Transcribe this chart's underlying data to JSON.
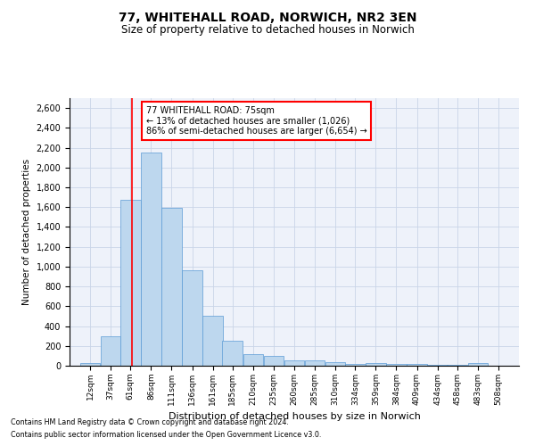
{
  "title1": "77, WHITEHALL ROAD, NORWICH, NR2 3EN",
  "title2": "Size of property relative to detached houses in Norwich",
  "xlabel": "Distribution of detached houses by size in Norwich",
  "ylabel": "Number of detached properties",
  "footer1": "Contains HM Land Registry data © Crown copyright and database right 2024.",
  "footer2": "Contains public sector information licensed under the Open Government Licence v3.0.",
  "annotation_title": "77 WHITEHALL ROAD: 75sqm",
  "annotation_line1": "← 13% of detached houses are smaller (1,026)",
  "annotation_line2": "86% of semi-detached houses are larger (6,654) →",
  "property_size": 75,
  "bar_color": "#BDD7EE",
  "bar_edge_color": "#5B9BD5",
  "grid_color": "#C9D5E8",
  "vline_color": "red",
  "annotation_box_color": "red",
  "background_color": "#EEF2FA",
  "categories": [
    "12sqm",
    "37sqm",
    "61sqm",
    "86sqm",
    "111sqm",
    "136sqm",
    "161sqm",
    "185sqm",
    "210sqm",
    "235sqm",
    "260sqm",
    "285sqm",
    "310sqm",
    "334sqm",
    "359sqm",
    "384sqm",
    "409sqm",
    "434sqm",
    "458sqm",
    "483sqm",
    "508sqm"
  ],
  "bin_starts": [
    12,
    37,
    61,
    86,
    111,
    136,
    161,
    185,
    210,
    235,
    260,
    285,
    310,
    334,
    359,
    384,
    409,
    434,
    458,
    483,
    508
  ],
  "bin_width": 25,
  "values": [
    25,
    300,
    1675,
    2150,
    1595,
    960,
    505,
    250,
    120,
    100,
    50,
    50,
    35,
    20,
    30,
    15,
    20,
    10,
    5,
    25,
    0
  ],
  "ylim": [
    0,
    2700
  ],
  "yticks": [
    0,
    200,
    400,
    600,
    800,
    1000,
    1200,
    1400,
    1600,
    1800,
    2000,
    2200,
    2400,
    2600
  ]
}
